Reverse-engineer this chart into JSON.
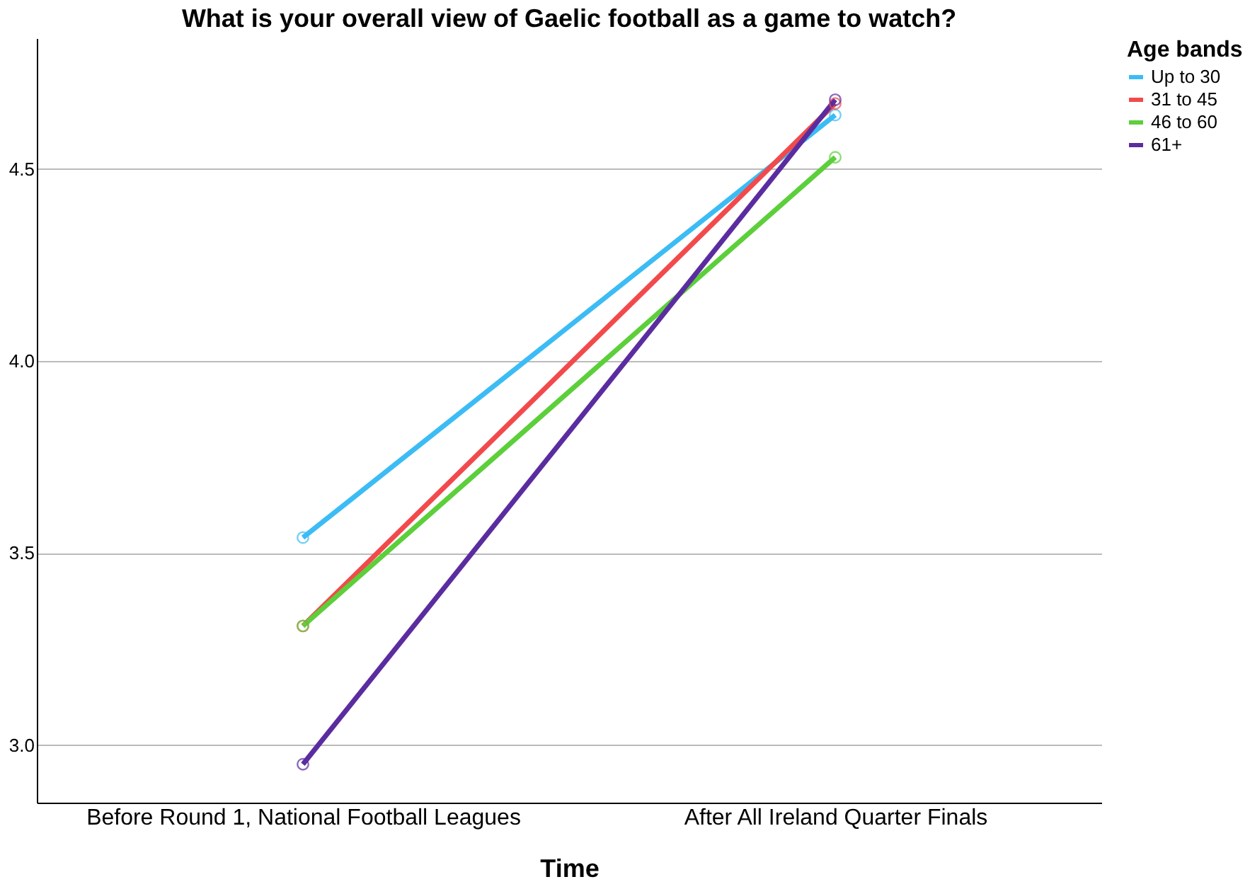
{
  "chart_data": {
    "type": "line",
    "title": "What is your overall view of Gaelic football as a game to watch?",
    "xlabel": "Time",
    "legend_title": "Age bands",
    "categories": [
      "Before Round 1, National Football Leagues",
      "After All Ireland Quarter Finals"
    ],
    "series": [
      {
        "name": "Up to 30",
        "color": "#3cbcf5",
        "values": [
          3.54,
          4.64
        ]
      },
      {
        "name": "31 to 45",
        "color": "#f24a4c",
        "values": [
          3.31,
          4.67
        ]
      },
      {
        "name": "46 to 60",
        "color": "#5ccf3a",
        "values": [
          3.31,
          4.53
        ]
      },
      {
        "name": "61+",
        "color": "#5b2ca0",
        "values": [
          2.95,
          4.68
        ]
      }
    ],
    "ylim": [
      2.85,
      4.84
    ],
    "yticks": [
      {
        "value": 3.0,
        "label": "3.0"
      },
      {
        "value": 3.5,
        "label": "3.5"
      },
      {
        "value": 4.0,
        "label": "4.0"
      },
      {
        "value": 4.5,
        "label": "4.5"
      }
    ],
    "grid": "y",
    "legend": "top right",
    "marker": "circle",
    "line_style": "solid"
  }
}
